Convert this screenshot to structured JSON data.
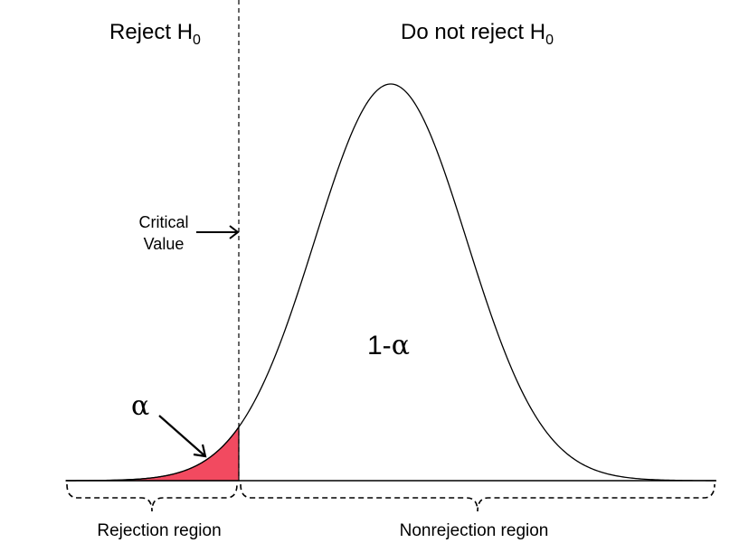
{
  "labels": {
    "reject_text": "Reject H",
    "reject_sub": "0",
    "not_reject_text": "Do not reject H",
    "not_reject_sub": "0",
    "critical_line1": "Critical",
    "critical_line2": "Value",
    "alpha": "α",
    "one_minus_alpha_prefix": "1-",
    "one_minus_alpha_symbol": "α",
    "rejection_region": "Rejection region",
    "nonrejection_region": "Nonrejection region"
  },
  "colors": {
    "rejection_fill": "#f24a60",
    "stroke": "#000000"
  }
}
